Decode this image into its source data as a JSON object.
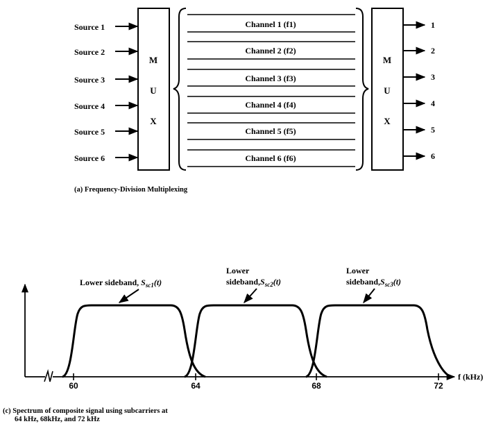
{
  "fdm": {
    "sources": [
      "Source 1",
      "Source 2",
      "Source 3",
      "Source 4",
      "Source 5",
      "Source 6"
    ],
    "mux_left": [
      "M",
      "U",
      "X"
    ],
    "mux_right": [
      "M",
      "U",
      "X"
    ],
    "channels": [
      "Channel 1 (f1)",
      "Channel 2 (f2)",
      "Channel 3 (f3)",
      "Channel 4 (f4)",
      "Channel 5 (f5)",
      "Channel 6 (f6)"
    ],
    "outputs": [
      "1",
      "2",
      "3",
      "4",
      "5",
      "6"
    ],
    "caption": "(a)  Frequency-Division Multiplexing"
  },
  "spectrum": {
    "label1_line1": "Lower sideband, ",
    "label1_sym": "S",
    "label1_sub": "sc1",
    "label1_tail": "(t)",
    "label2_line1": "Lower",
    "label2_line2": "sideband,",
    "label2_sym": "S",
    "label2_sub": "sc2",
    "label2_tail": "(t)",
    "label3_line1": "Lower",
    "label3_line2": "sideband,",
    "label3_sym": "S",
    "label3_sub": "sc3",
    "label3_tail": "(t)",
    "ticks": [
      "60",
      "64",
      "68",
      "72"
    ],
    "axis_label": "f (kHz)",
    "caption_line1": "(c)  Spectrum of composite signal using subcarriers at",
    "caption_line2": "64 kHz, 68kHz, and 72 kHz"
  }
}
